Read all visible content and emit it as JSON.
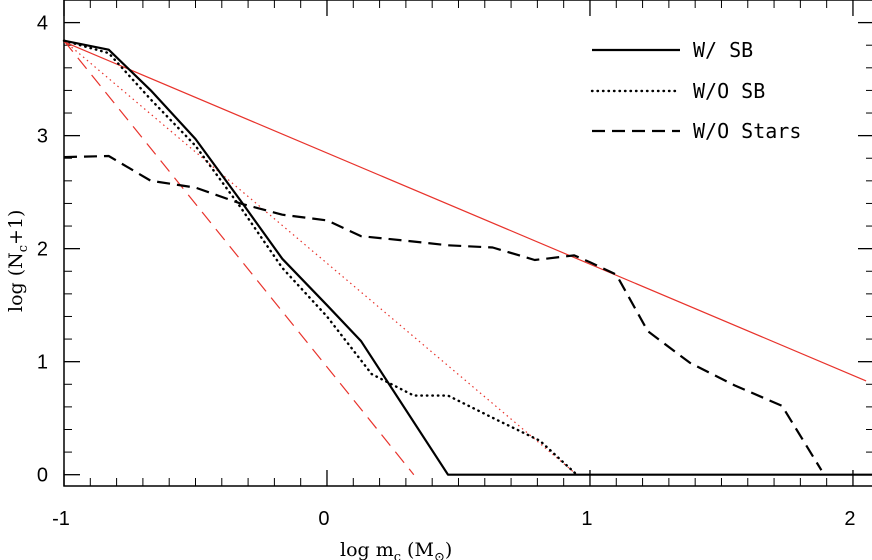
{
  "chart_data": {
    "type": "line",
    "title": "",
    "xlabel": "log  m",
    "xlabel_sub": "c",
    "xlabel_unit": " (M",
    "xlabel_unit_sub": "⊙",
    "xlabel_close": ")",
    "ylabel": "log  (N",
    "ylabel_sub": "c",
    "ylabel_tail": "+1)",
    "xlim": [
      -1,
      2.08
    ],
    "ylim": [
      -0.1,
      4.2
    ],
    "xticks": [
      -1,
      0,
      1,
      2
    ],
    "xtick_labels": [
      "-1",
      "0",
      "1",
      "2"
    ],
    "yticks": [
      0,
      1,
      2,
      3,
      4
    ],
    "ytick_labels": [
      "0",
      "1",
      "2",
      "3",
      "4"
    ],
    "legend_position": "top-right",
    "series": [
      {
        "name": "W/ SB",
        "color": "#000000",
        "dash": "solid",
        "x": [
          -1.0,
          -0.83,
          -0.67,
          -0.5,
          -0.33,
          -0.17,
          0.0,
          0.13,
          0.46,
          2.1
        ],
        "y": [
          3.84,
          3.76,
          3.4,
          2.97,
          2.43,
          1.91,
          1.5,
          1.18,
          0.0,
          0.0
        ]
      },
      {
        "name": "W/O SB",
        "color": "#000000",
        "dash": "dotted",
        "x": [
          -1.0,
          -0.83,
          -0.67,
          -0.5,
          -0.33,
          -0.17,
          0.0,
          0.17,
          0.33,
          0.46,
          0.65,
          0.81,
          0.95
        ],
        "y": [
          3.84,
          3.73,
          3.32,
          2.91,
          2.37,
          1.83,
          1.4,
          0.89,
          0.7,
          0.7,
          0.48,
          0.3,
          0.0
        ]
      },
      {
        "name": "W/O Stars",
        "color": "#000000",
        "dash": "dashed",
        "x": [
          -1.0,
          -0.83,
          -0.67,
          -0.5,
          -0.33,
          -0.17,
          0.0,
          0.13,
          0.3,
          0.46,
          0.63,
          0.79,
          0.94,
          1.0,
          1.1,
          1.22,
          1.38,
          1.55,
          1.73,
          1.88
        ],
        "y": [
          2.81,
          2.82,
          2.6,
          2.54,
          2.4,
          2.3,
          2.25,
          2.11,
          2.07,
          2.03,
          2.01,
          1.9,
          1.94,
          1.88,
          1.77,
          1.27,
          0.99,
          0.79,
          0.61,
          0.04
        ]
      }
    ],
    "reference_lines": [
      {
        "color": "#e8332c",
        "dash": "solid",
        "x": [
          -1.0,
          2.05
        ],
        "y": [
          3.83,
          0.83
        ]
      },
      {
        "color": "#e8332c",
        "dash": "dotted",
        "x": [
          -1.0,
          0.95
        ],
        "y": [
          3.84,
          0.0
        ]
      },
      {
        "color": "#e8332c",
        "dash": "dashed",
        "x": [
          -1.0,
          0.33
        ],
        "y": [
          3.84,
          0.0
        ]
      }
    ]
  }
}
